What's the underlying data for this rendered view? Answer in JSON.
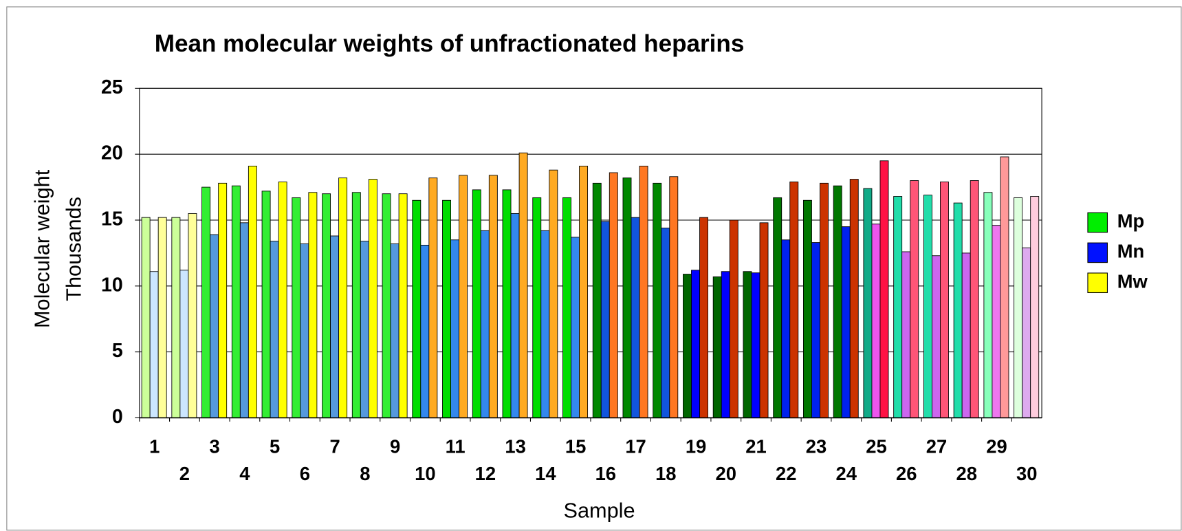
{
  "chart_data": {
    "type": "bar",
    "title": "Mean molecular weights of unfractionated heparins",
    "xlabel": "Sample",
    "ylabel": [
      "Molecular weight",
      "Thousands"
    ],
    "categories": [
      "1",
      "2",
      "3",
      "4",
      "5",
      "6",
      "7",
      "8",
      "9",
      "10",
      "11",
      "12",
      "13",
      "14",
      "15",
      "16",
      "17",
      "18",
      "19",
      "20",
      "21",
      "22",
      "23",
      "24",
      "25",
      "26",
      "27",
      "28",
      "29",
      "30"
    ],
    "series": [
      {
        "name": "Mp",
        "color": "#00ee00",
        "values": [
          15.2,
          15.2,
          17.5,
          17.6,
          17.2,
          16.7,
          17.0,
          17.1,
          17.0,
          16.5,
          16.5,
          17.3,
          17.3,
          16.7,
          16.7,
          17.8,
          18.2,
          17.8,
          10.9,
          10.7,
          11.1,
          16.7,
          16.5,
          17.6,
          17.4,
          16.8,
          16.9,
          16.3,
          17.1,
          16.7
        ],
        "colors": [
          "#ccff99",
          "#ccff99",
          "#33ee33",
          "#33ee33",
          "#33ee33",
          "#33ee33",
          "#33ee33",
          "#33ee33",
          "#33ee33",
          "#00dd00",
          "#00dd00",
          "#00dd00",
          "#00dd00",
          "#00dd00",
          "#00dd00",
          "#008800",
          "#008800",
          "#008800",
          "#006600",
          "#006600",
          "#006600",
          "#007700",
          "#007700",
          "#007700",
          "#11aa88",
          "#22ddaa",
          "#22ddaa",
          "#22ddaa",
          "#88ffbb",
          "#ddffdd"
        ]
      },
      {
        "name": "Mn",
        "color": "#0011ff",
        "values": [
          11.1,
          11.2,
          13.9,
          14.8,
          13.4,
          13.2,
          13.8,
          13.4,
          13.2,
          13.1,
          13.5,
          14.2,
          15.5,
          14.2,
          13.7,
          14.9,
          15.2,
          14.4,
          11.2,
          11.1,
          11.0,
          13.5,
          13.3,
          14.5,
          14.7,
          12.6,
          12.3,
          12.5,
          14.6,
          12.9
        ],
        "colors": [
          "#cce6ff",
          "#cce6ff",
          "#5599dd",
          "#5599dd",
          "#5599dd",
          "#5599dd",
          "#5599dd",
          "#5599dd",
          "#5599dd",
          "#3388ee",
          "#3388ee",
          "#3388ee",
          "#3388ee",
          "#3388ee",
          "#3388ee",
          "#1155dd",
          "#1155dd",
          "#1155dd",
          "#0000ff",
          "#0000ff",
          "#0000ff",
          "#0022ee",
          "#0022ee",
          "#0022ee",
          "#ee55ee",
          "#cc66ee",
          "#cc66ee",
          "#cc66ee",
          "#ee77ee",
          "#ddaaee"
        ]
      },
      {
        "name": "Mw",
        "color": "#ffff00",
        "values": [
          15.2,
          15.5,
          17.8,
          19.1,
          17.9,
          17.1,
          18.2,
          18.1,
          17.0,
          18.2,
          18.4,
          18.4,
          20.1,
          18.8,
          19.1,
          18.6,
          19.1,
          18.3,
          15.2,
          15.0,
          14.8,
          17.9,
          17.8,
          18.1,
          19.5,
          18.0,
          17.9,
          18.0,
          19.8,
          16.8
        ],
        "colors": [
          "#ffff99",
          "#ffff99",
          "#ffff00",
          "#ffff00",
          "#ffff00",
          "#ffff00",
          "#ffff00",
          "#ffff00",
          "#ffff00",
          "#ffaa22",
          "#ffaa22",
          "#ffaa22",
          "#ffaa22",
          "#ffaa22",
          "#ffaa22",
          "#ff7722",
          "#ff7722",
          "#ff7722",
          "#cc3300",
          "#cc3300",
          "#cc3300",
          "#cc3300",
          "#cc3300",
          "#cc3300",
          "#ff1144",
          "#ff5577",
          "#ff5577",
          "#ff5577",
          "#ff9999",
          "#ffccdd"
        ]
      }
    ],
    "ylim": [
      0,
      25
    ],
    "yticks": [
      0,
      5,
      10,
      15,
      20,
      25
    ],
    "grid": true,
    "legend": "right"
  }
}
